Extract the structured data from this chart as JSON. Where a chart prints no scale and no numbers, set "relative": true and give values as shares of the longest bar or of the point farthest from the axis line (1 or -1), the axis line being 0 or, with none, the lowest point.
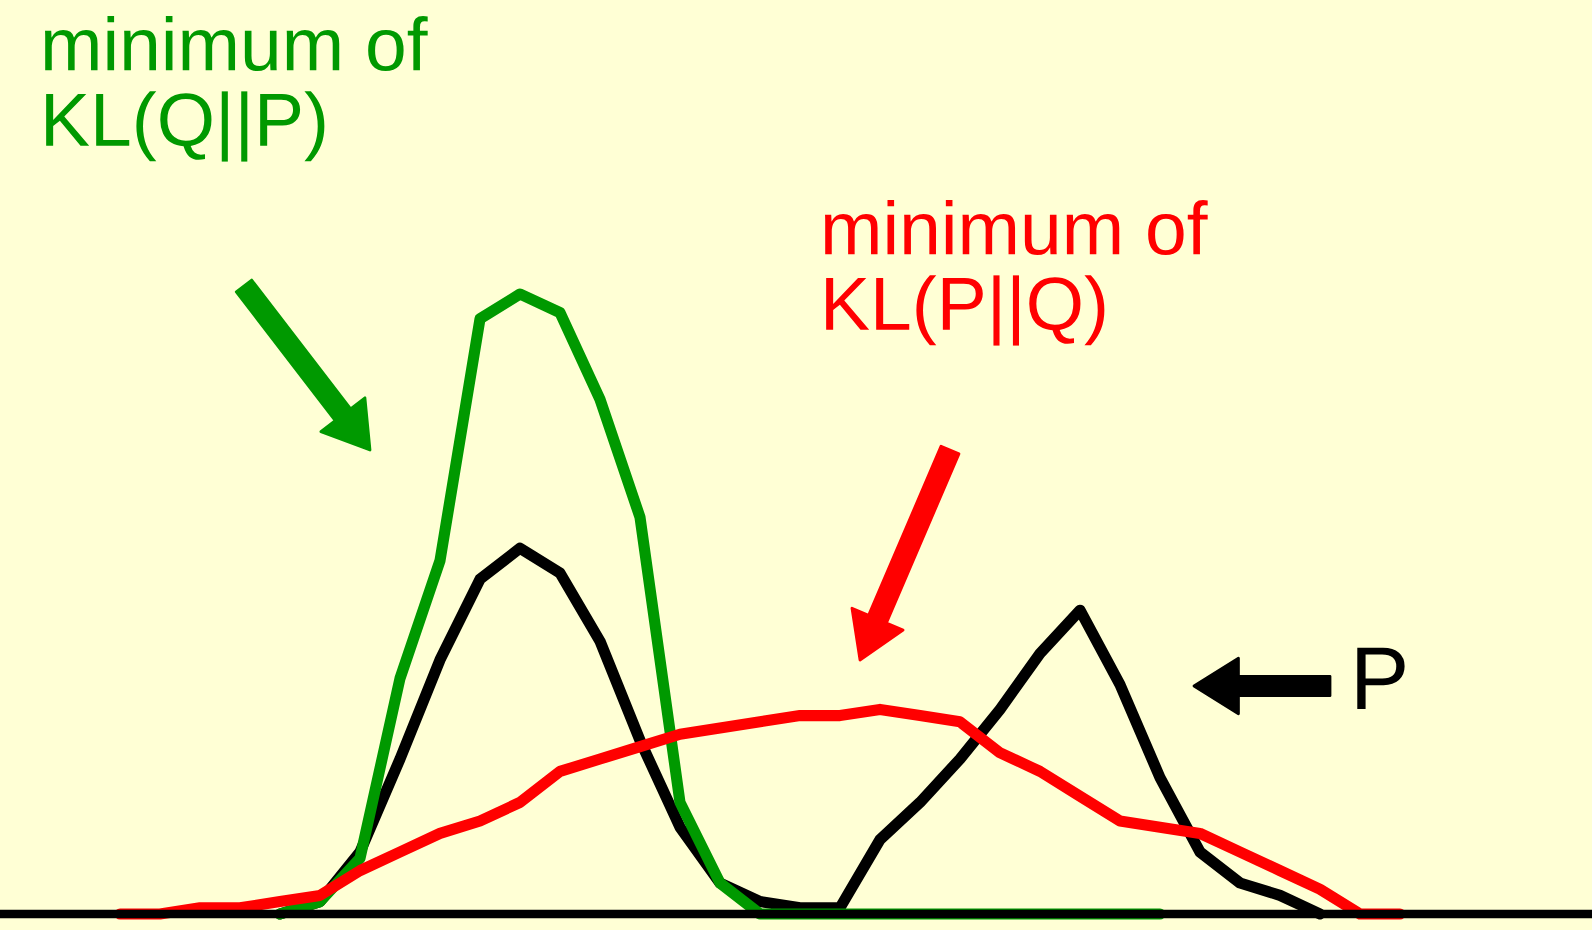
{
  "chart_data": {
    "type": "line",
    "relative": true,
    "categories": [
      null,
      null,
      null,
      null,
      null,
      null,
      null,
      null,
      null,
      null,
      null,
      null,
      null,
      null,
      null,
      null,
      null,
      null,
      null,
      null,
      null,
      null,
      null,
      null,
      null,
      null,
      null,
      null,
      null,
      null,
      null,
      null,
      null
    ],
    "series": [
      {
        "name": "P",
        "color": "#000000",
        "values": [
          null,
          null,
          null,
          null,
          0,
          0.02,
          0.1,
          0.25,
          0.41,
          0.54,
          0.59,
          0.55,
          0.44,
          0.28,
          0.14,
          0.05,
          0.02,
          0.01,
          0.01,
          0.12,
          0.18,
          0.25,
          0.33,
          0.42,
          0.49,
          0.37,
          0.22,
          0.1,
          0.05,
          0.03,
          0,
          null,
          null
        ]
      },
      {
        "name": "minimum of\nKL(Q||P)",
        "color": "#009900",
        "values": [
          null,
          null,
          null,
          null,
          0,
          0.02,
          0.09,
          0.38,
          0.57,
          0.96,
          1.0,
          0.97,
          0.83,
          0.64,
          0.18,
          0.05,
          0,
          0,
          0,
          0,
          0,
          0,
          0,
          0,
          0,
          0,
          0,
          null,
          null,
          null,
          null,
          null,
          null
        ]
      },
      {
        "name": "minimum of\nKL(P||Q)",
        "color": "#ff0000",
        "values": [
          0,
          0,
          0.01,
          0.01,
          0.02,
          0.03,
          0.07,
          0.1,
          0.13,
          0.15,
          0.18,
          0.23,
          0.25,
          0.27,
          0.29,
          0.3,
          0.31,
          0.32,
          0.32,
          0.33,
          0.32,
          0.31,
          0.26,
          0.23,
          0.19,
          0.15,
          0.14,
          0.13,
          0.1,
          0.07,
          0.04,
          0,
          0
        ]
      }
    ],
    "line_style": "solid"
  }
}
